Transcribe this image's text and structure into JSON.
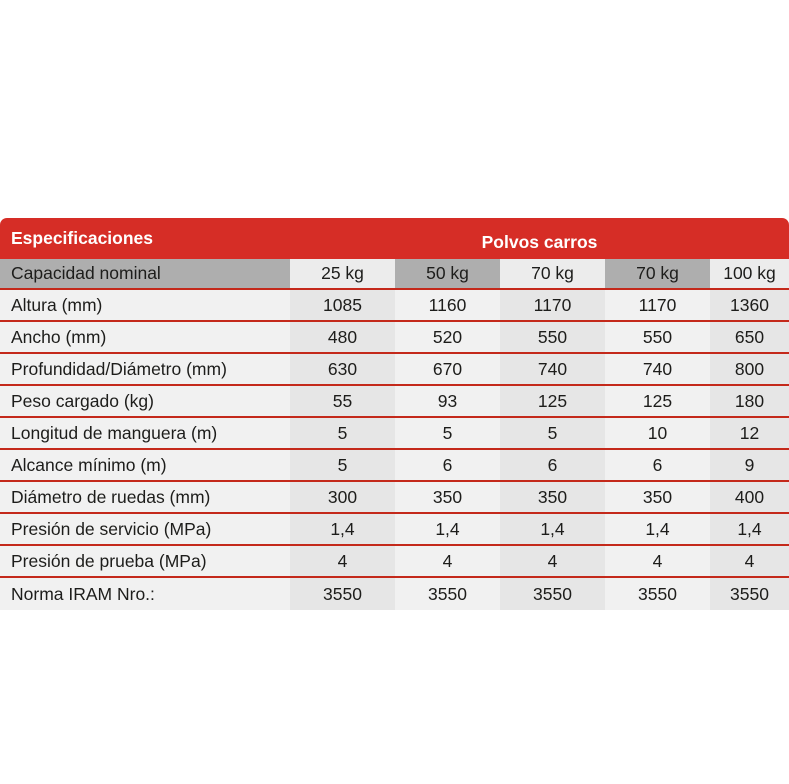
{
  "table": {
    "header": {
      "left_title": "Especificaciones",
      "right_title": "Polvos carros"
    },
    "capacity_row": {
      "label": "Capacidad nominal",
      "columns": [
        "25 kg",
        "50 kg",
        "70 kg",
        "70 kg",
        "100 kg"
      ]
    },
    "rows": [
      {
        "label": "Altura (mm)",
        "values": [
          "1085",
          "1160",
          "1170",
          "1170",
          "1360"
        ]
      },
      {
        "label": "Ancho (mm)",
        "values": [
          "480",
          "520",
          "550",
          "550",
          "650"
        ]
      },
      {
        "label": "Profundidad/Diámetro (mm)",
        "values": [
          "630",
          "670",
          "740",
          "740",
          "800"
        ]
      },
      {
        "label": "Peso cargado (kg)",
        "values": [
          "55",
          "93",
          "125",
          "125",
          "180"
        ]
      },
      {
        "label": "Longitud de manguera (m)",
        "values": [
          "5",
          "5",
          "5",
          "10",
          "12"
        ]
      },
      {
        "label": "Alcance mínimo (m)",
        "values": [
          "5",
          "6",
          "6",
          "6",
          "9"
        ]
      },
      {
        "label": "Diámetro de ruedas (mm)",
        "values": [
          "300",
          "350",
          "350",
          "350",
          "400"
        ]
      },
      {
        "label": "Presión de servicio (MPa)",
        "values": [
          "1,4",
          "1,4",
          "1,4",
          "1,4",
          "1,4"
        ]
      },
      {
        "label": "Presión de prueba (MPa)",
        "values": [
          "4",
          "4",
          "4",
          "4",
          "4"
        ]
      },
      {
        "label": "Norma IRAM Nro.:",
        "values": [
          "3550",
          "3550",
          "3550",
          "3550",
          "3550"
        ]
      }
    ],
    "colors": {
      "header_red": "#d62d26",
      "separator_red": "#c4291b",
      "subheader_gray": "#aeaeae",
      "subheader_light": "#ececec",
      "body_light": "#f1f1f1",
      "body_dark": "#e6e6e6",
      "text": "#1d1d1b",
      "header_text": "#ffffff"
    }
  }
}
